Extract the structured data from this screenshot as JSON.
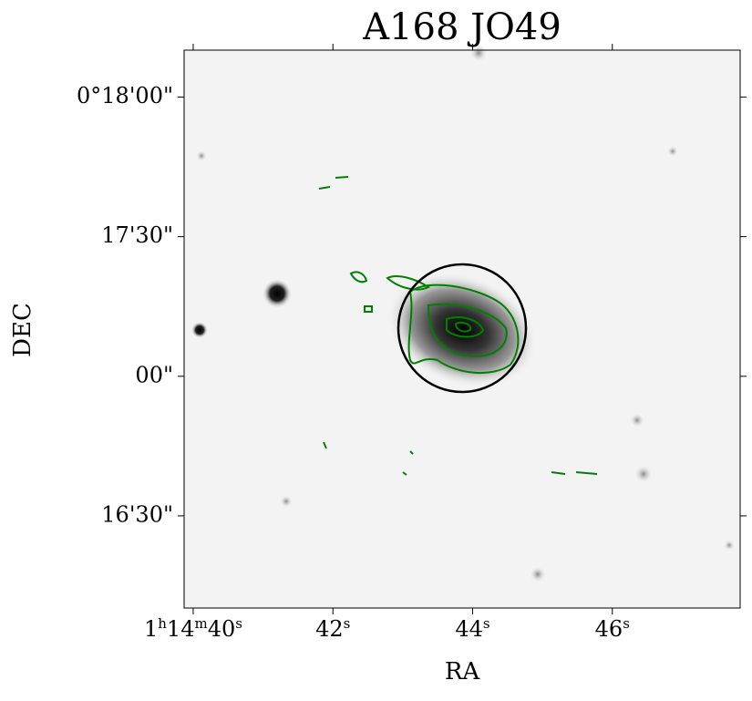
{
  "chart_data": {
    "type": "image",
    "title": "A168 JO49",
    "x_label": "RA",
    "y_label": "DEC",
    "xlim": [
      39.87,
      47.83
    ],
    "xticks": [
      {
        "value": 40,
        "label": "1h14m40s"
      },
      {
        "value": 42,
        "label": "42s"
      },
      {
        "value": 44,
        "label": "44s"
      },
      {
        "value": 46,
        "label": "46s"
      }
    ],
    "ylim": [
      0.2695,
      0.3028
    ],
    "yticks": [
      {
        "value": 0.3,
        "label": "0°18'00\""
      },
      {
        "value": 0.291667,
        "label": "17'30\""
      },
      {
        "value": 0.283333,
        "label": "00\""
      },
      {
        "value": 0.275,
        "label": "16'30\""
      }
    ],
    "contour_color": "#008000"
  }
}
